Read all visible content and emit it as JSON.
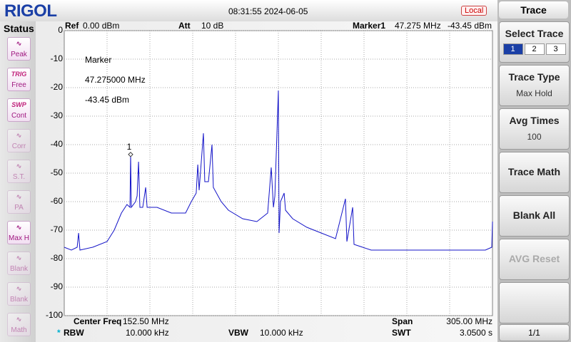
{
  "header": {
    "brand": "RIGOL",
    "datetime": "08:31:55 2024-06-05",
    "mode": "Local"
  },
  "status": {
    "title": "Status",
    "items": [
      {
        "label": "Peak"
      },
      {
        "tag": "TRIG",
        "label": "Free"
      },
      {
        "tag": "SWP",
        "label": "Cont"
      },
      {
        "label": "Corr"
      },
      {
        "label": "S.T."
      },
      {
        "label": "PA"
      },
      {
        "label": "Max H"
      },
      {
        "label": "Blank"
      },
      {
        "label": "Blank"
      },
      {
        "label": "Math"
      }
    ]
  },
  "plot": {
    "ref_label": "Ref",
    "ref": "0.00 dBm",
    "att_label": "Att",
    "att": "10 dB",
    "marker_label": "Marker1",
    "marker_freq": "47.275 MHz",
    "marker_level": "-43.45 dBm",
    "readout": [
      "Marker",
      "47.275000 MHz",
      "-43.45 dBm"
    ],
    "center_label": "Center Freq",
    "center": "152.50 MHz",
    "span_label": "Span",
    "span": "305.00 MHz",
    "rbw_star": "*",
    "rbw_label": "RBW",
    "rbw": "10.000 kHz",
    "vbw_label": "VBW",
    "vbw": "10.000 kHz",
    "swt_label": "SWT",
    "swt": "3.0500 s"
  },
  "chart_data": {
    "type": "line",
    "x": [
      0,
      5.1,
      9.2,
      10.2,
      11.2,
      20.3,
      30.5,
      35.6,
      40.7,
      44.7,
      46.8,
      47.275,
      47.8,
      50.8,
      51.9,
      52.9,
      53.9,
      55.9,
      58.0,
      59.0,
      66.1,
      76.3,
      86.4,
      90.5,
      94.0,
      95.1,
      96.1,
      99.1,
      100.1,
      102.7,
      105.2,
      106.2,
      111.8,
      116.9,
      127.1,
      137.2,
      144.9,
      147.4,
      149.0,
      150.0,
      152.5,
      153.0,
      154.0,
      156.6,
      157.6,
      162.7,
      172.8,
      183.0,
      193.2,
      200.3,
      201.3,
      205.4,
      206.4,
      218.6,
      238.9,
      259.3,
      279.6,
      299.9,
      304.5,
      305
    ],
    "values": [
      -76,
      -77,
      -76,
      -71,
      -77,
      -76,
      -74,
      -70,
      -64,
      -61,
      -62,
      -43.45,
      -62,
      -60,
      -58,
      -46,
      -62,
      -62,
      -55,
      -62,
      -62,
      -64,
      -64,
      -60,
      -57,
      -47,
      -56,
      -36,
      -53,
      -53,
      -40,
      -55,
      -60,
      -63,
      -66,
      -67,
      -64,
      -48,
      -62,
      -58,
      -21,
      -71,
      -60,
      -57,
      -63,
      -66,
      -69,
      -71,
      -73,
      -59,
      -74,
      -62,
      -75,
      -77,
      -77,
      -77,
      -77,
      -77,
      -76,
      -67
    ],
    "color": "#1414c8",
    "xlim": [
      0,
      305
    ],
    "ylim": [
      -100,
      0
    ],
    "yticks": [
      0,
      -10,
      -20,
      -30,
      -40,
      -50,
      -60,
      -70,
      -80,
      -90,
      -100
    ],
    "grid": true,
    "marker": {
      "label": "1",
      "x": 47.275,
      "value": -43.45
    }
  },
  "menu": {
    "title": "Trace",
    "select": {
      "label": "Select Trace",
      "options": [
        "1",
        "2",
        "3"
      ]
    },
    "items": [
      {
        "label": "Trace Type",
        "value": "Max Hold"
      },
      {
        "label": "Avg Times",
        "value": "100"
      },
      {
        "label": "Trace Math"
      },
      {
        "label": "Blank All"
      },
      {
        "label": "AVG Reset"
      }
    ],
    "page": "1/1"
  }
}
